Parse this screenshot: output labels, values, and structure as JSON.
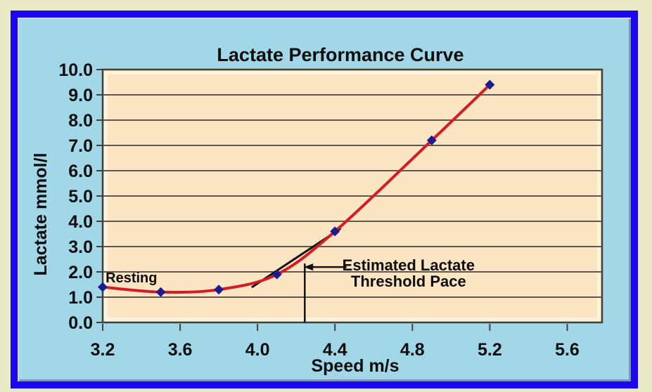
{
  "window": {
    "outer_background": "#ebeac6",
    "frame_border_color": "#1b07f0",
    "panel_background": "#a2d7e8"
  },
  "chart_data": {
    "type": "line",
    "title": "Lactate Performance Curve",
    "xlabel": "Speed m/s",
    "ylabel": "Lactate mmol/l",
    "x": [
      3.2,
      3.5,
      3.8,
      4.1,
      4.4,
      4.9,
      5.2
    ],
    "series": [
      {
        "name": "Lactate",
        "values": [
          1.4,
          1.2,
          1.3,
          1.9,
          3.6,
          7.2,
          9.4
        ]
      }
    ],
    "xticks": [
      "3.2",
      "3.6",
      "4.0",
      "4.4",
      "4.8",
      "5.2",
      "5.6"
    ],
    "yticks": [
      "0.0",
      "1.0",
      "2.0",
      "3.0",
      "4.0",
      "5.0",
      "6.0",
      "7.0",
      "8.0",
      "9.0",
      "10.0"
    ],
    "xlim": [
      3.2,
      5.78
    ],
    "ylim": [
      0,
      10
    ],
    "grid": "horizontal",
    "legend": "none",
    "plot_background": "#fce5c2",
    "grid_color": "#5d574e",
    "line_color": "#d51c24",
    "line_width": 4,
    "marker": {
      "shape": "diamond",
      "color": "#1c1c90",
      "size": 14
    },
    "annotations": {
      "resting_label": {
        "text": "Resting",
        "x": 3.215,
        "y": 1.58
      },
      "threshold_label": {
        "lines": [
          "Estimated Lactate",
          "Threshold Pace"
        ],
        "x": 4.78,
        "y_line1": 2.06,
        "y_line2": 1.42
      },
      "tangent_line": {
        "from": [
          3.97,
          1.39
        ],
        "to": [
          4.43,
          3.72
        ]
      },
      "threshold_vline": {
        "x": 4.244,
        "y_from": 0,
        "y_to": 2.33
      },
      "arrow": {
        "from": [
          4.46,
          2.19
        ],
        "to": [
          4.24,
          2.19
        ]
      }
    }
  }
}
